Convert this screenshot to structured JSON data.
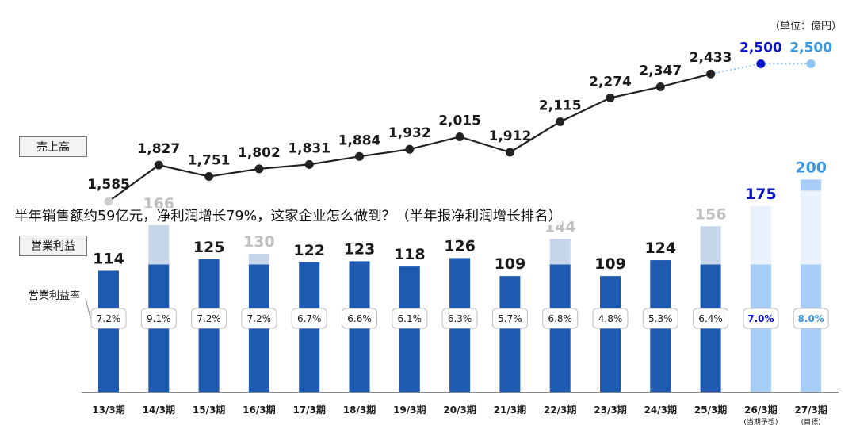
{
  "unit_label": "（単位：億円）",
  "tags": {
    "sales": "売上高",
    "operating_profit": "営業利益",
    "operating_margin": "営業利益率"
  },
  "overlay_text": "半年销售额约59亿元，净利润增长79%，这家企业怎么做到？（半年报净利润增长排名）",
  "colors": {
    "actual_bar": "#1e5ab0",
    "forecast_bar": "#a6cdf6",
    "target_bar": "#a6cdf6",
    "bar_upper_part": "#c4d6e8",
    "forecast_upper_part": "#e8f1fc",
    "line": "#222222",
    "forecast_point": "#0a14c8",
    "target_point": "#8fc3f2",
    "forecast_text": "#0a14c8",
    "target_text": "#3a96e0",
    "first_point": "#cfcfcf"
  },
  "chart_data": {
    "type": "bar+line",
    "categories": [
      "13/3期",
      "14/3期",
      "15/3期",
      "16/3期",
      "17/3期",
      "18/3期",
      "19/3期",
      "20/3期",
      "21/3期",
      "22/3期",
      "23/3期",
      "24/3期",
      "25/3期",
      "26/3期",
      "27/3期"
    ],
    "category_sublabels": [
      "",
      "",
      "",
      "",
      "",
      "",
      "",
      "",
      "",
      "",
      "",
      "",
      "",
      "(当期予想)",
      "(目標)"
    ],
    "series": [
      {
        "name": "売上高",
        "kind": "line",
        "values": [
          1585,
          1827,
          1751,
          1802,
          1831,
          1884,
          1932,
          2015,
          1912,
          2115,
          2274,
          2347,
          2433,
          2500,
          2500
        ],
        "labels": [
          "1,585",
          "1,827",
          "1,751",
          "1,802",
          "1,831",
          "1,884",
          "1,932",
          "2,015",
          "1,912",
          "2,115",
          "2,274",
          "2,347",
          "2,433",
          "2,500",
          "2,500"
        ]
      },
      {
        "name": "営業利益",
        "kind": "bar",
        "values": [
          114,
          166,
          125,
          130,
          122,
          123,
          118,
          126,
          109,
          144,
          109,
          124,
          156,
          175,
          200
        ],
        "labels": [
          "114",
          "166",
          "125",
          "130",
          "122",
          "123",
          "118",
          "126",
          "109",
          "144",
          "109",
          "124",
          "156",
          "175",
          "200"
        ]
      },
      {
        "name": "営業利益率",
        "kind": "label",
        "labels": [
          "7.2%",
          "9.1%",
          "7.2%",
          "7.2%",
          "6.7%",
          "6.6%",
          "6.1%",
          "6.3%",
          "5.7%",
          "6.8%",
          "4.8%",
          "5.3%",
          "6.4%",
          "7.0%",
          "8.0%"
        ]
      }
    ],
    "bar_lower_part_values": [
      114,
      120,
      125,
      120,
      122,
      123,
      118,
      126,
      109,
      120,
      109,
      124,
      120,
      120,
      120
    ],
    "status": [
      "actual",
      "actual",
      "actual",
      "actual",
      "actual",
      "actual",
      "actual",
      "actual",
      "actual",
      "actual",
      "actual",
      "actual",
      "actual",
      "forecast",
      "target"
    ]
  }
}
